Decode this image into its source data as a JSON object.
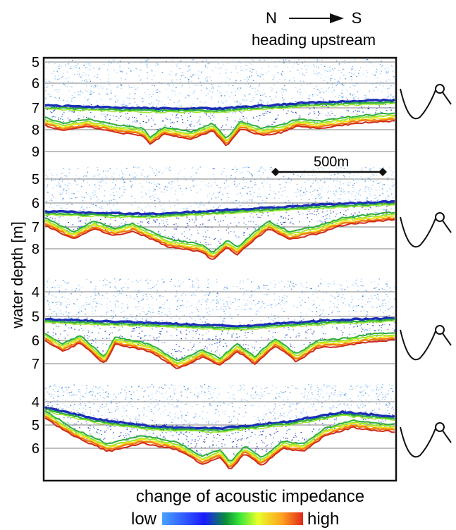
{
  "header": {
    "direction_from": "N",
    "direction_to": "S",
    "subtitle": "heading upstream"
  },
  "axis": {
    "ylabel": "water depth [m]"
  },
  "panels": [
    {
      "ticks": [
        "5",
        "6",
        "7",
        "8",
        "9"
      ]
    },
    {
      "ticks": [
        "5",
        "6",
        "7",
        "8"
      ]
    },
    {
      "ticks": [
        "4",
        "5",
        "6",
        "7"
      ]
    },
    {
      "ticks": [
        "4",
        "5",
        "6"
      ]
    }
  ],
  "scalebar": {
    "label": "500m"
  },
  "legend": {
    "title": "change of acoustic impedance",
    "low": "low",
    "high": "high",
    "colors": [
      "#4aa3ff",
      "#1a1aff",
      "#0b8f3a",
      "#39e639",
      "#e8ff2a",
      "#ffa21f",
      "#e0281a"
    ]
  },
  "palette": {
    "noise_light": "#8fc8ff",
    "noise_mid": "#3f82e0",
    "noise_dark": "#1b2fb5",
    "green": "#2fae3c",
    "lime": "#9be82d",
    "yellow": "#f2e21b",
    "orange": "#f07d14",
    "red": "#d02a1a",
    "gridline": "#555555"
  }
}
